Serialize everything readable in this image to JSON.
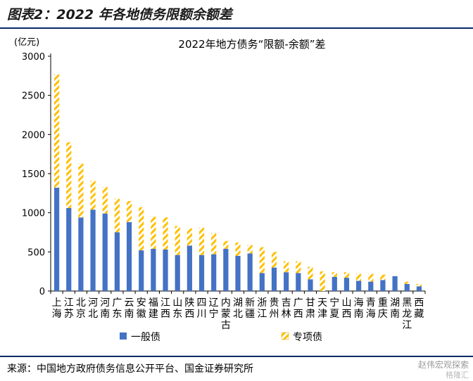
{
  "figure_title": "图表2：2022 年各地债务限额余额差",
  "source": "来源：中国地方政府债务信息公开平台、国金证券研究所",
  "watermark": "赵伟宏观探索",
  "watermark2": "格隆汇",
  "colors": {
    "general": "#4472c4",
    "special": "#ffc000",
    "rule": "#0a2a66"
  },
  "chart_data": {
    "type": "bar",
    "stacked": true,
    "title": "2022年地方债务“限额-余额”差",
    "ylabel": "(亿元)",
    "ylim": [
      0,
      3000
    ],
    "yticks": [
      0,
      500,
      1000,
      1500,
      2000,
      2500,
      3000
    ],
    "legend_position": "bottom",
    "categories": [
      "上海",
      "江苏",
      "北京",
      "河北",
      "河南",
      "广东",
      "云南",
      "安徽",
      "福建",
      "江西",
      "山东",
      "陕西",
      "四川",
      "辽宁",
      "内蒙古",
      "湖北",
      "新疆",
      "浙江",
      "贵州",
      "吉林",
      "广西",
      "甘肃",
      "天津",
      "宁夏",
      "山西",
      "海南",
      "青海",
      "重庆",
      "湖南",
      "黑龙江",
      "西藏"
    ],
    "series": [
      {
        "name": "一般债",
        "color": "#4472c4",
        "pattern": "solid",
        "values": [
          1320,
          1060,
          940,
          1040,
          990,
          750,
          880,
          520,
          540,
          530,
          460,
          580,
          460,
          470,
          540,
          450,
          480,
          230,
          300,
          240,
          230,
          150,
          0,
          180,
          170,
          130,
          120,
          140,
          190,
          90,
          60
        ]
      },
      {
        "name": "专项债",
        "color": "#ffc000",
        "pattern": "hatch",
        "values": [
          1450,
          840,
          690,
          370,
          340,
          430,
          270,
          550,
          410,
          410,
          370,
          220,
          350,
          270,
          100,
          170,
          110,
          330,
          200,
          140,
          150,
          160,
          250,
          60,
          70,
          90,
          100,
          70,
          0,
          30,
          30
        ]
      }
    ]
  }
}
